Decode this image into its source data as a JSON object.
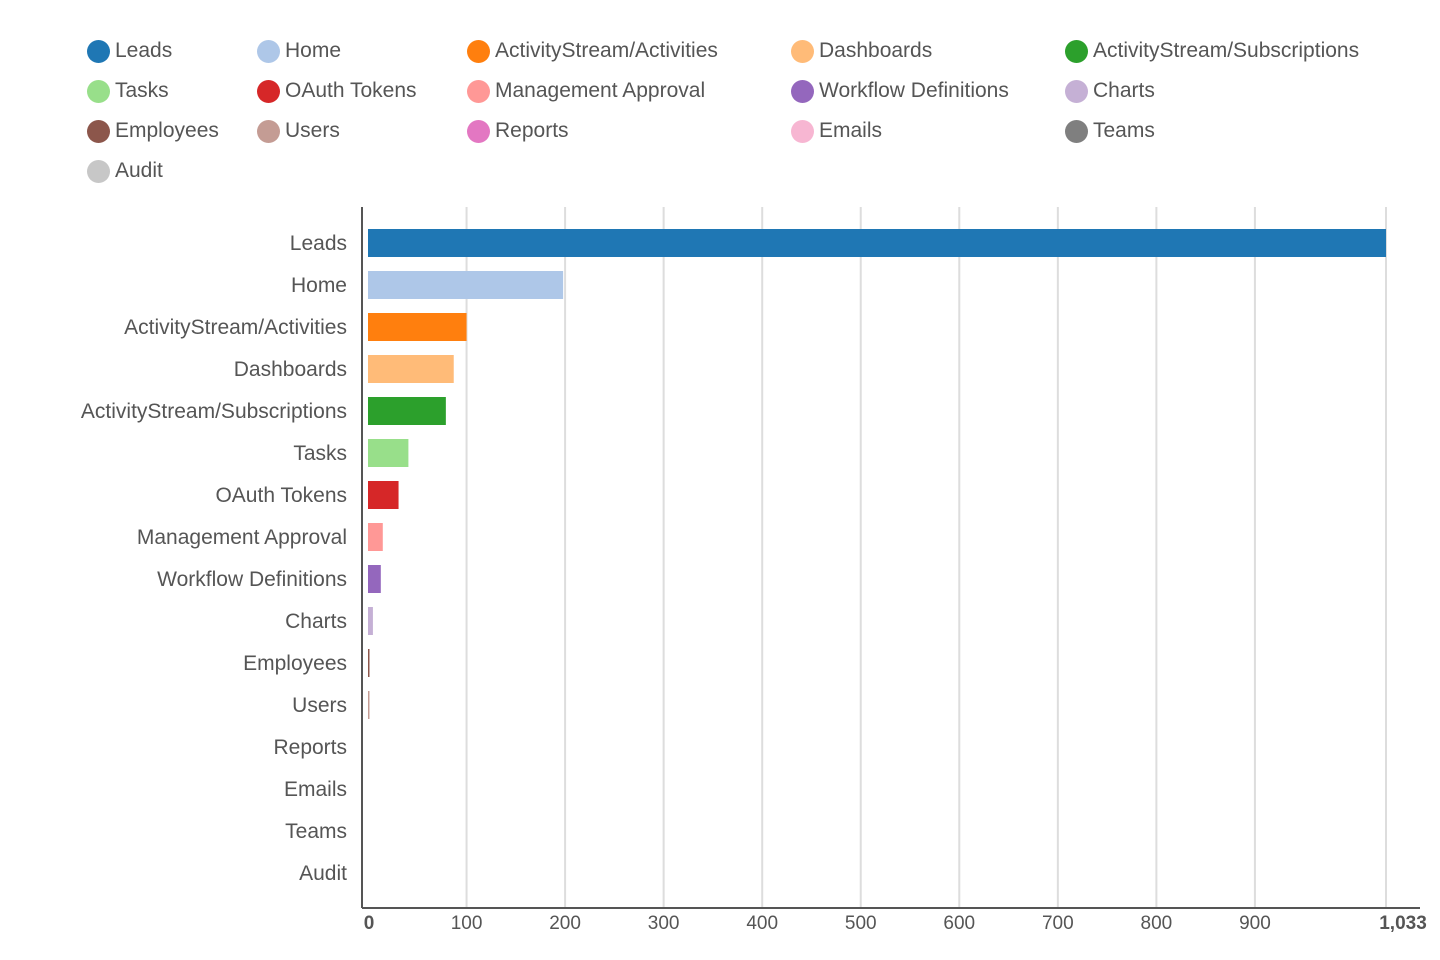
{
  "chart_data": {
    "type": "bar",
    "orientation": "horizontal",
    "categories": [
      "Leads",
      "Home",
      "ActivityStream/Activities",
      "Dashboards",
      "ActivityStream/Subscriptions",
      "Tasks",
      "OAuth Tokens",
      "Management Approval",
      "Workflow Definitions",
      "Charts",
      "Employees",
      "Users",
      "Reports",
      "Emails",
      "Teams",
      "Audit"
    ],
    "values": [
      1033,
      198,
      100,
      87,
      79,
      41,
      31,
      15,
      13,
      5,
      1,
      1,
      0,
      0,
      0,
      0
    ],
    "colors": [
      "#1f77b4",
      "#aec7e8",
      "#ff7f0e",
      "#ffbb78",
      "#2ca02c",
      "#98df8a",
      "#d62728",
      "#ff9896",
      "#9467bd",
      "#c5b0d5",
      "#8c564b",
      "#c49c94",
      "#e377c2",
      "#f7b6d2",
      "#7f7f7f",
      "#c7c7c7"
    ],
    "xlim": [
      0,
      1033
    ],
    "xticks": [
      0,
      100,
      200,
      300,
      400,
      500,
      600,
      700,
      800,
      900,
      1033
    ],
    "xtick_labels": [
      "0",
      "100",
      "200",
      "300",
      "400",
      "500",
      "600",
      "700",
      "800",
      "900",
      "1,033"
    ],
    "grid": true,
    "legend": {
      "placement": "top",
      "entries": [
        "Leads",
        "Home",
        "ActivityStream/Activities",
        "Dashboards",
        "ActivityStream/Subscriptions",
        "Tasks",
        "OAuth Tokens",
        "Management Approval",
        "Workflow Definitions",
        "Charts",
        "Employees",
        "Users",
        "Reports",
        "Emails",
        "Teams",
        "Audit"
      ]
    }
  }
}
